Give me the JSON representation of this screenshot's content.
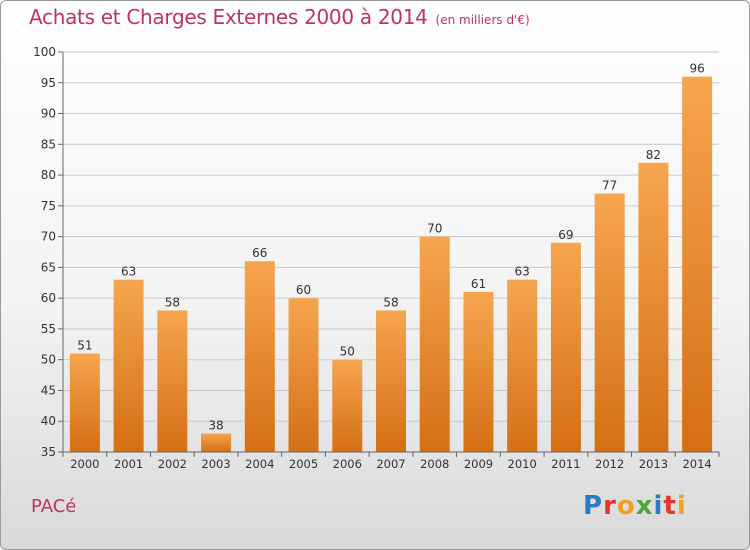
{
  "header": {
    "title": "Achats et Charges Externes 2000 à 2014",
    "unit": "(en milliers d'€)"
  },
  "footer": {
    "place": "PACé",
    "brand": "Proxiti"
  },
  "colors": {
    "title": "#c0335a",
    "bar_top": "#f6a54f",
    "bar_bottom": "#d46f14",
    "grid": "#c8c8c8",
    "axis_text": "#333333"
  },
  "chart_data": {
    "type": "bar",
    "categories": [
      "2000",
      "2001",
      "2002",
      "2003",
      "2004",
      "2005",
      "2006",
      "2007",
      "2008",
      "2009",
      "2010",
      "2011",
      "2012",
      "2013",
      "2014"
    ],
    "values": [
      51,
      63,
      58,
      38,
      66,
      60,
      50,
      58,
      70,
      61,
      63,
      69,
      77,
      82,
      96
    ],
    "ylim": [
      35,
      100
    ],
    "yticks": [
      35,
      40,
      45,
      50,
      55,
      60,
      65,
      70,
      75,
      80,
      85,
      90,
      95,
      100
    ],
    "grid": true
  }
}
